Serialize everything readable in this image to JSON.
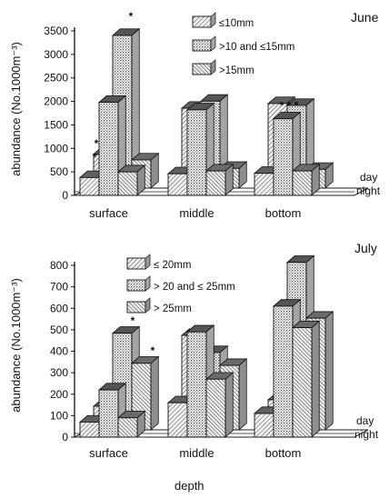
{
  "chart_data": [
    {
      "type": "bar",
      "title": "June",
      "ylabel": "abundance (No.1000m⁻³)",
      "ylim": [
        0,
        3500
      ],
      "yticks": [
        0,
        500,
        1000,
        1500,
        2000,
        2500,
        3000,
        3500
      ],
      "categories": [
        "surface",
        "middle",
        "bottom"
      ],
      "rows": [
        "day",
        "night"
      ],
      "series": [
        {
          "name": "≤10mm",
          "day": [
            720,
            1700,
            1800
          ],
          "night": [
            380,
            460,
            470
          ]
        },
        {
          "name": ">10 and ≤15mm",
          "day": [
            3250,
            1850,
            1760
          ],
          "night": [
            1980,
            1820,
            1630
          ]
        },
        {
          "name": ">15mm",
          "day": [
            600,
            420,
            400
          ],
          "night": [
            500,
            520,
            520
          ]
        }
      ],
      "annotations": [
        "*",
        "*",
        "*",
        "* * *"
      ],
      "legend": "top-right"
    },
    {
      "type": "bar",
      "title": "July",
      "ylabel": "abundance (No.1000m⁻³)",
      "ylim": [
        0,
        800
      ],
      "yticks": [
        0,
        100,
        200,
        300,
        400,
        500,
        600,
        700,
        800
      ],
      "categories": [
        "surface",
        "middle",
        "bottom"
      ],
      "rows": [
        "day",
        "night"
      ],
      "series": [
        {
          "name": "≤ 20mm",
          "day": [
            110,
            440,
            140
          ],
          "night": [
            70,
            160,
            110
          ]
        },
        {
          "name": "> 20 and ≤ 25mm",
          "day": [
            450,
            360,
            780
          ],
          "night": [
            220,
            490,
            610
          ]
        },
        {
          "name": "> 25mm",
          "day": [
            310,
            300,
            520
          ],
          "night": [
            90,
            270,
            510
          ]
        }
      ],
      "annotations": [
        "*",
        "*"
      ],
      "legend": "top"
    }
  ],
  "labels": {
    "june": "June",
    "july": "July",
    "ylabel_june": "abundance (No.1000m⁻³)",
    "ylabel_july": "abundance (No.1000m⁻³)",
    "xlabel": "depth",
    "day": "day",
    "night": "night"
  }
}
